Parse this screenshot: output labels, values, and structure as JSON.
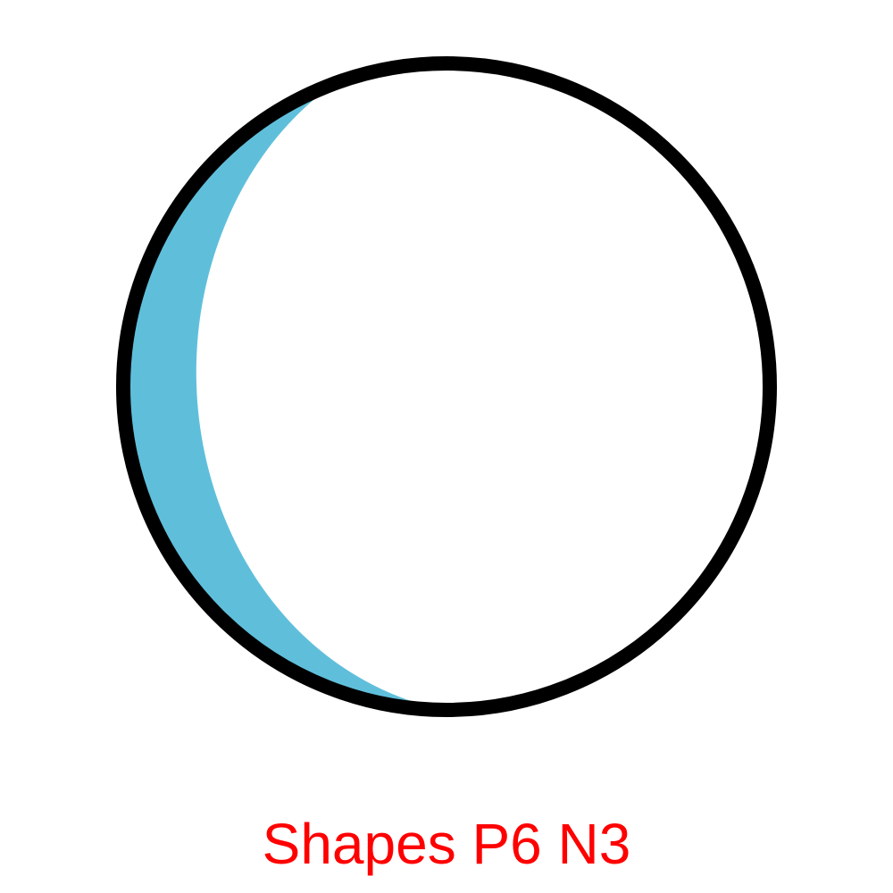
{
  "caption": "Shapes P6 N3",
  "colors": {
    "background": "#ffffff",
    "crescent_fill": "#5fbfdb",
    "outline": "#000000",
    "caption": "#ff0000"
  },
  "shape": {
    "kind": "circle-with-crescent",
    "crescent_side": "left"
  }
}
